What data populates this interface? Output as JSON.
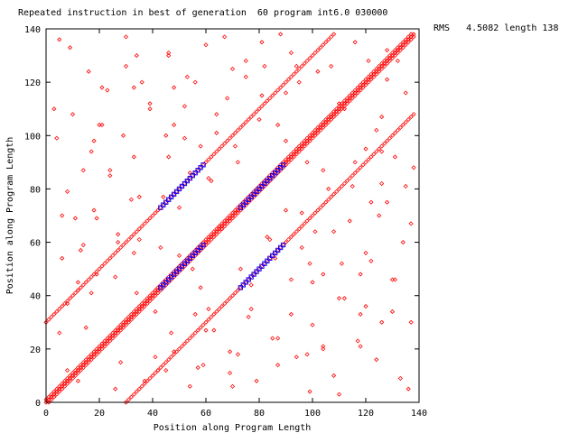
{
  "title": "Repeated instruction in best of generation  60 program int6.0 030000",
  "annotation": "RMS   4.5082 length 138",
  "chart_data": {
    "type": "scatter",
    "title": "Repeated instruction in best of generation  60 program int6.0 030000",
    "xlabel": "Position along Program Length",
    "ylabel": "Position along Program Length",
    "xlim": [
      0,
      140
    ],
    "ylim": [
      0,
      140
    ],
    "xticks": [
      0,
      20,
      40,
      60,
      80,
      100,
      120,
      140
    ],
    "yticks": [
      0,
      20,
      40,
      60,
      80,
      100,
      120,
      140
    ],
    "grid": false,
    "series": [
      {
        "marker": "diamond",
        "color": "#ff0000",
        "diagonal_offsets": [
          0,
          1,
          -1,
          30,
          -30
        ],
        "diagonal_range": [
          0,
          138
        ],
        "points": [
          [
            5,
            26
          ],
          [
            8,
            12
          ],
          [
            9,
            133
          ],
          [
            13,
            57
          ],
          [
            14,
            87
          ],
          [
            17,
            41
          ],
          [
            19,
            69
          ],
          [
            21,
            104
          ],
          [
            23,
            117
          ],
          [
            26,
            47
          ],
          [
            28,
            15
          ],
          [
            30,
            126
          ],
          [
            33,
            92
          ],
          [
            35,
            61
          ],
          [
            37,
            8
          ],
          [
            39,
            110
          ],
          [
            41,
            34
          ],
          [
            44,
            77
          ],
          [
            46,
            131
          ],
          [
            48,
            19
          ],
          [
            50,
            55
          ],
          [
            52,
            99
          ],
          [
            54,
            6
          ],
          [
            56,
            120
          ],
          [
            58,
            43
          ],
          [
            61,
            84
          ],
          [
            63,
            27
          ],
          [
            65,
            66
          ],
          [
            67,
            137
          ],
          [
            69,
            11
          ],
          [
            71,
            96
          ],
          [
            73,
            50
          ],
          [
            75,
            122
          ],
          [
            77,
            35
          ],
          [
            79,
            8
          ],
          [
            81,
            115
          ],
          [
            83,
            62
          ],
          [
            85,
            24
          ],
          [
            87,
            104
          ],
          [
            90,
            72
          ],
          [
            92,
            131
          ],
          [
            94,
            17
          ],
          [
            96,
            58
          ],
          [
            98,
            90
          ],
          [
            100,
            29
          ],
          [
            102,
            124
          ],
          [
            104,
            48
          ],
          [
            106,
            80
          ],
          [
            108,
            10
          ],
          [
            110,
            112
          ],
          [
            112,
            39
          ],
          [
            114,
            68
          ],
          [
            116,
            135
          ],
          [
            118,
            21
          ],
          [
            120,
            95
          ],
          [
            122,
            53
          ],
          [
            124,
            16
          ],
          [
            126,
            107
          ],
          [
            128,
            75
          ],
          [
            130,
            34
          ],
          [
            132,
            128
          ],
          [
            134,
            60
          ],
          [
            136,
            5
          ],
          [
            138,
            88
          ],
          [
            12,
            45
          ],
          [
            24,
            87
          ],
          [
            36,
            120
          ],
          [
            42,
            12
          ],
          [
            56,
            33
          ],
          [
            64,
            101
          ],
          [
            72,
            18
          ],
          [
            86,
            54
          ],
          [
            94,
            126
          ],
          [
            108,
            64
          ],
          [
            118,
            33
          ],
          [
            126,
            82
          ],
          [
            6,
            70
          ],
          [
            18,
            98
          ],
          [
            32,
            76
          ],
          [
            48,
            118
          ],
          [
            70,
            125
          ],
          [
            92,
            46
          ],
          [
            104,
            20
          ],
          [
            116,
            90
          ],
          [
            130,
            46
          ],
          [
            3,
            110
          ],
          [
            27,
            60
          ],
          [
            45,
            100
          ],
          [
            59,
            14
          ],
          [
            81,
            135
          ],
          [
            99,
            4
          ],
          [
            111,
            52
          ],
          [
            121,
            128
          ],
          [
            137,
            30
          ]
        ]
      },
      {
        "marker": "square",
        "color": "#0000ff",
        "segments": [
          [
            43,
            73,
            59,
            89
          ],
          [
            43,
            43,
            59,
            59
          ],
          [
            73,
            73,
            89,
            89
          ],
          [
            73,
            43,
            89,
            59
          ]
        ]
      }
    ]
  }
}
